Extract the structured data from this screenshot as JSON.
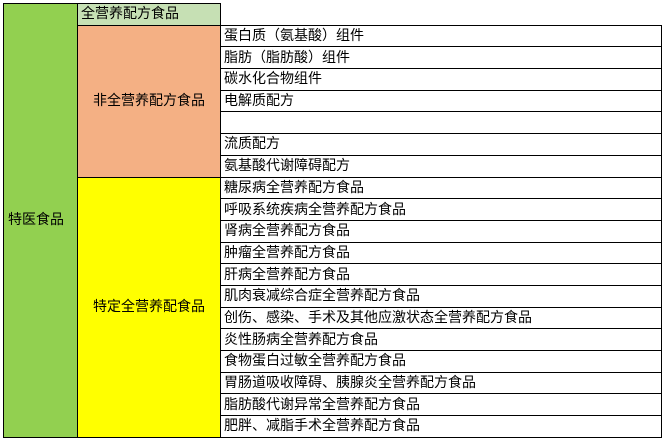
{
  "root_category": "特医食品",
  "full_nutrition": {
    "label": "全营养配方食品"
  },
  "non_full_nutrition": {
    "label": "非全营养配方食品",
    "items": [
      "蛋白质（氨基酸）组件",
      "脂肪（脂肪酸）组件",
      "碳水化合物组件",
      "电解质配方",
      "",
      "流质配方",
      "氨基酸代谢障碍配方"
    ]
  },
  "specific_full_nutrition": {
    "label": "特定全营养配食品",
    "items": [
      "糖尿病全营养配方食品",
      "呼吸系统疾病全营养配方食品",
      "肾病全营养配方食品",
      "肿瘤全营养配方食品",
      "肝病全营养配方食品",
      "肌肉衰减综合症全营养配方食品",
      "创伤、感染、手术及其他应激状态全营养配方食品",
      "炎性肠病全营养配方食品",
      "食物蛋白过敏全营养配方食品",
      "胃肠道吸收障碍、胰腺炎全营养配方食品",
      "脂肪酸代谢异常全营养配方食品",
      "肥胖、减脂手术全营养配方食品"
    ]
  },
  "colors": {
    "root": "#92d050",
    "full": "#c6e0b4",
    "non_full": "#f4b084",
    "specific": "#ffff00"
  }
}
